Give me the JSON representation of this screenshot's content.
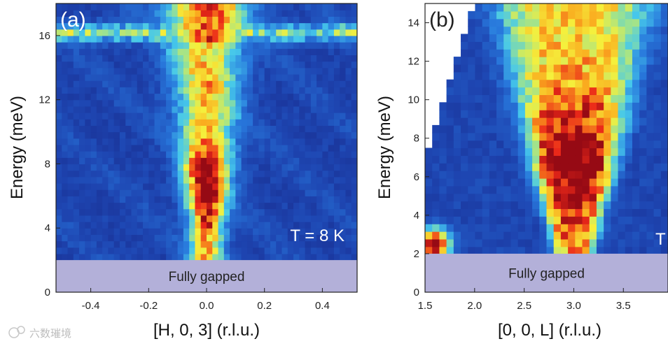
{
  "chart_data": [
    {
      "type": "heatmap",
      "panel_label": "(a)",
      "xlabel": "[H, 0, 3] (r.l.u.)",
      "ylabel": "Energy (meV)",
      "xlim": [
        -0.52,
        0.52
      ],
      "ylim": [
        0,
        18
      ],
      "xticks": [
        -0.4,
        -0.2,
        0.0,
        0.2,
        0.4
      ],
      "xtick_labels": [
        "-0.4",
        "-0.2",
        "0.0",
        "0.2",
        "0.4"
      ],
      "yticks": [
        0,
        4,
        8,
        12,
        16
      ],
      "ytick_labels": [
        "0",
        "4",
        "8",
        "12",
        "16"
      ],
      "gap_band": {
        "ymin": 0,
        "ymax": 2,
        "label": "Fully gapped"
      },
      "annotation": "T = 8 K",
      "colormap": "jet",
      "features": [
        {
          "name": "central spin-wave column",
          "x_center": 0.0,
          "halfwidth_at_4meV": 0.06,
          "halfwidth_at_16meV": 0.13,
          "peak_energy": 6.5,
          "peak_intensity": 1.0
        },
        {
          "name": "upper horizontal branch",
          "energy": 16.2,
          "intensity": 0.42
        }
      ]
    },
    {
      "type": "heatmap",
      "panel_label": "(b)",
      "xlabel": "[0, 0, L] (r.l.u.)",
      "ylabel": "Energy (meV)",
      "xlim": [
        1.5,
        3.95
      ],
      "ylim": [
        0,
        15
      ],
      "xticks": [
        1.5,
        2.0,
        2.5,
        3.0,
        3.5
      ],
      "xtick_labels": [
        "1.5",
        "2.0",
        "2.5",
        "3.0",
        "3.5"
      ],
      "yticks": [
        0,
        2,
        4,
        6,
        8,
        10,
        12,
        14
      ],
      "ytick_labels": [
        "0",
        "2",
        "4",
        "6",
        "8",
        "10",
        "12",
        "14"
      ],
      "gap_band": {
        "ymin": 0,
        "ymax": 2,
        "label": "Fully gapped"
      },
      "annotation": "T",
      "colormap": "jet",
      "features": [
        {
          "name": "dispersive band centered at L=3",
          "x_center": 3.0,
          "halfwidth_at_2meV": 0.2,
          "halfwidth_at_14meV": 0.75,
          "peak_energy": 6.5,
          "peak_intensity": 0.95
        },
        {
          "name": "low-energy spot",
          "x": 1.6,
          "energy": 2.5,
          "intensity": 1.0
        }
      ]
    }
  ],
  "watermark": "六数璀境"
}
